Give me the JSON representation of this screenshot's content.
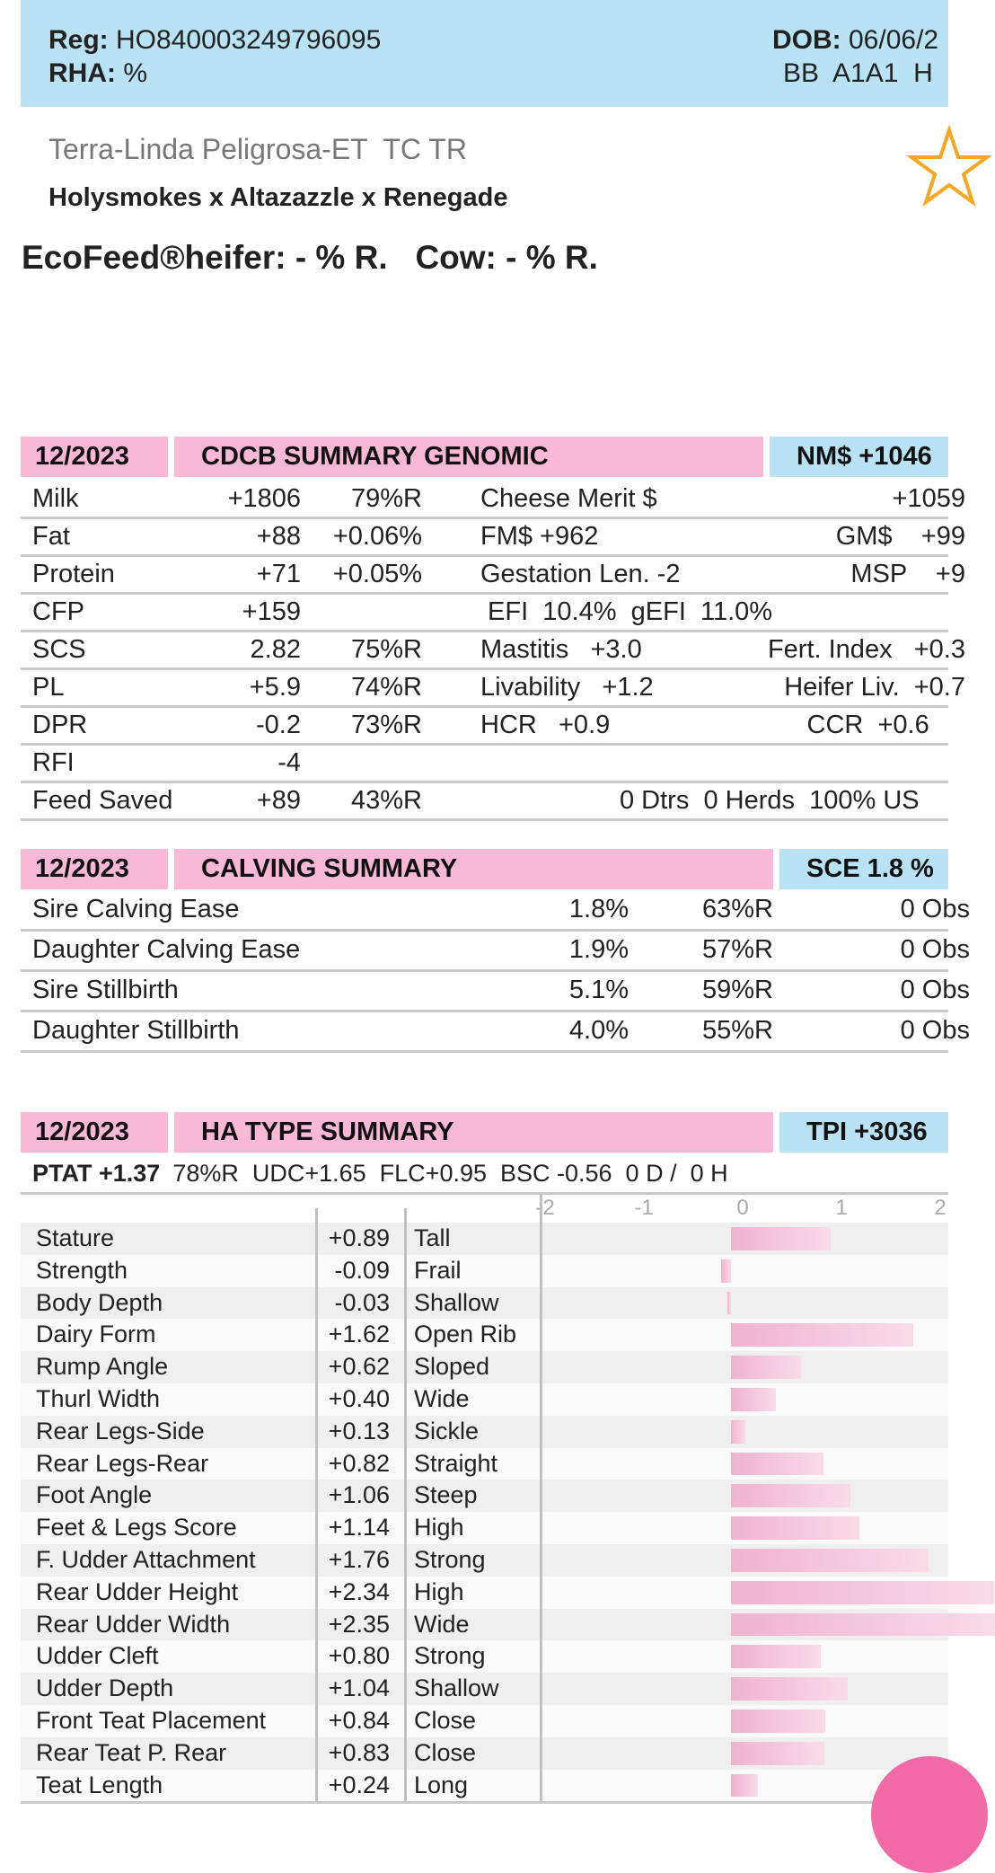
{
  "header": {
    "reg_label": "Reg:",
    "reg": "HO840003249796095",
    "rha_label": "RHA:",
    "rha": "%",
    "dob_label": "DOB:",
    "dob": "06/06/2",
    "codes": "BB  A1A1  H"
  },
  "name": "Terra-Linda Peligrosa-ET  TC TR",
  "pedigree": "Holysmokes x Altazazzle x Renegade",
  "ecofeed": "EcoFeed®heifer: - % R.   Cow: - % R.",
  "genomic": {
    "date": "12/2023",
    "title": "CDCB SUMMARY GENOMIC",
    "badge": "NM$ +1046",
    "rows": [
      {
        "label": "Milk",
        "value": "+1806",
        "rel": "79%R",
        "c1": "Cheese Merit $",
        "c2": "+1059"
      },
      {
        "label": "Fat",
        "value": "+88",
        "rel": "+0.06%",
        "c1": "FM$ +962",
        "c2": "GM$    +99"
      },
      {
        "label": "Protein",
        "value": "+71",
        "rel": "+0.05%",
        "c1": "Gestation Len. -2",
        "c2": "MSP    +9"
      },
      {
        "label": "CFP",
        "value": "+159",
        "c1": " EFI  10.4%  gEFI  11.0%"
      },
      {
        "label": "SCS",
        "value": "2.82",
        "rel": "75%R",
        "c1": "Mastitis   +3.0",
        "c2": "Fert. Index   +0.3"
      },
      {
        "label": "PL",
        "value": "+5.9",
        "rel": "74%R",
        "c1": "Livability   +1.2",
        "c2": "Heifer Liv.  +0.7"
      },
      {
        "label": "DPR",
        "value": "-0.2",
        "rel": "73%R",
        "c1": "HCR   +0.9",
        "c2": "CCR  +0.6     "
      },
      {
        "label": "RFI",
        "value": "-4"
      },
      {
        "label": "Feed Saved",
        "value": "+89",
        "rel": "43%R",
        "note": "0 Dtrs  0 Herds  100% US"
      }
    ]
  },
  "calving": {
    "date": "12/2023",
    "title": "CALVING SUMMARY",
    "badge": "SCE 1.8 %",
    "rows": [
      {
        "label": "Sire Calving Ease",
        "value": "1.8%",
        "rel": "63%R",
        "obs": "0 Obs"
      },
      {
        "label": "Daughter Calving Ease",
        "value": "1.9%",
        "rel": "57%R",
        "obs": "0 Obs"
      },
      {
        "label": "Sire Stillbirth",
        "value": "5.1%",
        "rel": "59%R",
        "obs": "0 Obs"
      },
      {
        "label": "Daughter Stillbirth",
        "value": "4.0%",
        "rel": "55%R",
        "obs": "0 Obs"
      }
    ]
  },
  "type": {
    "date": "12/2023",
    "title": "HA TYPE SUMMARY",
    "badge": "TPI +3036",
    "summary_label": "PTAT +1.37",
    "summary": "78%R  UDC+1.65  FLC+0.95  BSC -0.56  0 D /  0 H",
    "scale": [
      -2,
      -1,
      0,
      1,
      2
    ],
    "traits": [
      {
        "name": "Stature",
        "value": "+0.89",
        "desc": "Tall"
      },
      {
        "name": "Strength",
        "value": "-0.09",
        "desc": "Frail"
      },
      {
        "name": "Body Depth",
        "value": "-0.03",
        "desc": "Shallow"
      },
      {
        "name": "Dairy Form",
        "value": "+1.62",
        "desc": "Open Rib"
      },
      {
        "name": "Rump Angle",
        "value": "+0.62",
        "desc": "Sloped"
      },
      {
        "name": "Thurl Width",
        "value": "+0.40",
        "desc": "Wide"
      },
      {
        "name": "Rear Legs-Side",
        "value": "+0.13",
        "desc": "Sickle"
      },
      {
        "name": "Rear Legs-Rear",
        "value": "+0.82",
        "desc": "Straight"
      },
      {
        "name": "Foot Angle",
        "value": "+1.06",
        "desc": "Steep"
      },
      {
        "name": "Feet & Legs Score",
        "value": "+1.14",
        "desc": "High"
      },
      {
        "name": "F. Udder Attachment",
        "value": "+1.76",
        "desc": "Strong"
      },
      {
        "name": "Rear Udder Height",
        "value": "+2.34",
        "desc": "High"
      },
      {
        "name": "Rear Udder Width",
        "value": "+2.35",
        "desc": "Wide"
      },
      {
        "name": "Udder Cleft",
        "value": "+0.80",
        "desc": "Strong"
      },
      {
        "name": "Udder Depth",
        "value": "+1.04",
        "desc": "Shallow"
      },
      {
        "name": "Front Teat Placement",
        "value": "+0.84",
        "desc": "Close"
      },
      {
        "name": "Rear Teat P. Rear",
        "value": "+0.83",
        "desc": "Close"
      },
      {
        "name": "Teat Length",
        "value": "+0.24",
        "desc": "Long"
      }
    ]
  }
}
